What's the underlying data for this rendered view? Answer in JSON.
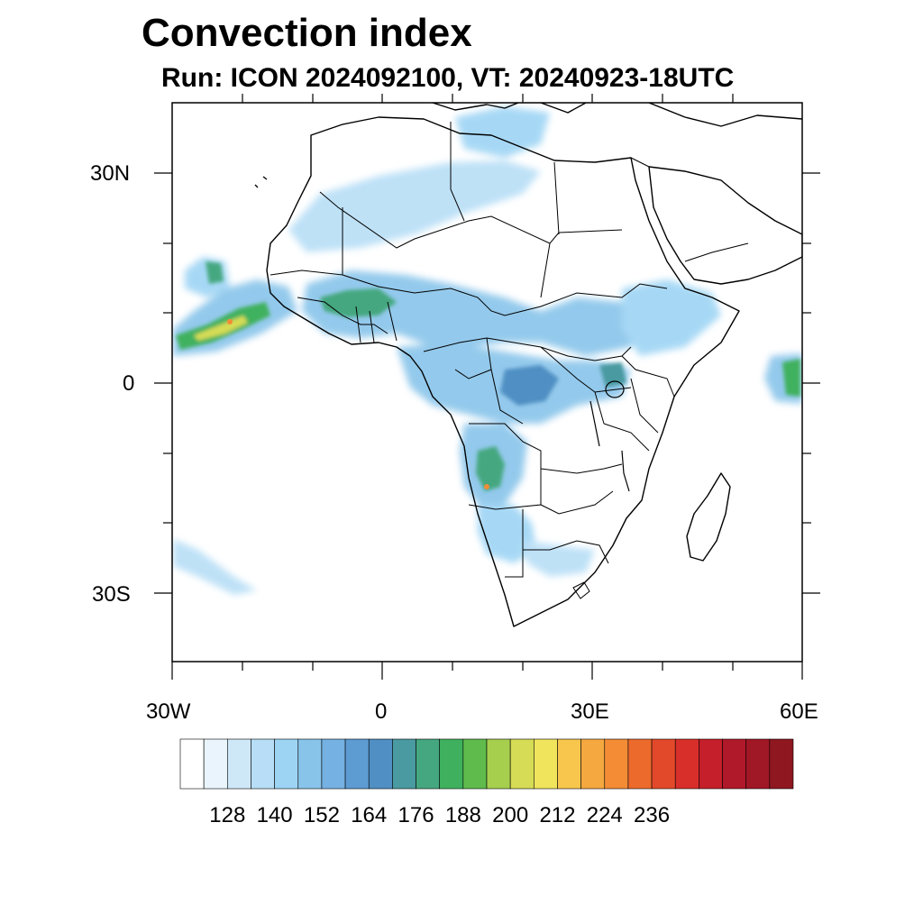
{
  "title": "Convection index",
  "subtitle": "Run: ICON 2024092100,  VT: 20240923-18UTC",
  "axes": {
    "lat_labels": [
      "30N",
      "0",
      "30S"
    ],
    "lon_labels": [
      "30W",
      "0",
      "30E",
      "60E"
    ],
    "lat_range": [
      -40,
      40
    ],
    "lon_range": [
      -30,
      60
    ]
  },
  "colorbar": {
    "tick_labels": [
      "128",
      "140",
      "152",
      "164",
      "176",
      "188",
      "200",
      "212",
      "224",
      "236"
    ],
    "colors": [
      "#ffffff",
      "#eaf4fc",
      "#cfe8f8",
      "#b7def6",
      "#9dd4f4",
      "#88c4ea",
      "#75b1e2",
      "#5d9bd3",
      "#4f8fc3",
      "#4a9aa1",
      "#45a77f",
      "#3fb15e",
      "#5ebb4c",
      "#a6cf4e",
      "#d6dc55",
      "#f0e45d",
      "#f8c64c",
      "#f5a840",
      "#f38c35",
      "#ec6a2c",
      "#e2492a",
      "#d82f2a",
      "#c41f2a",
      "#b0192a",
      "#a01725",
      "#8e1720"
    ]
  }
}
